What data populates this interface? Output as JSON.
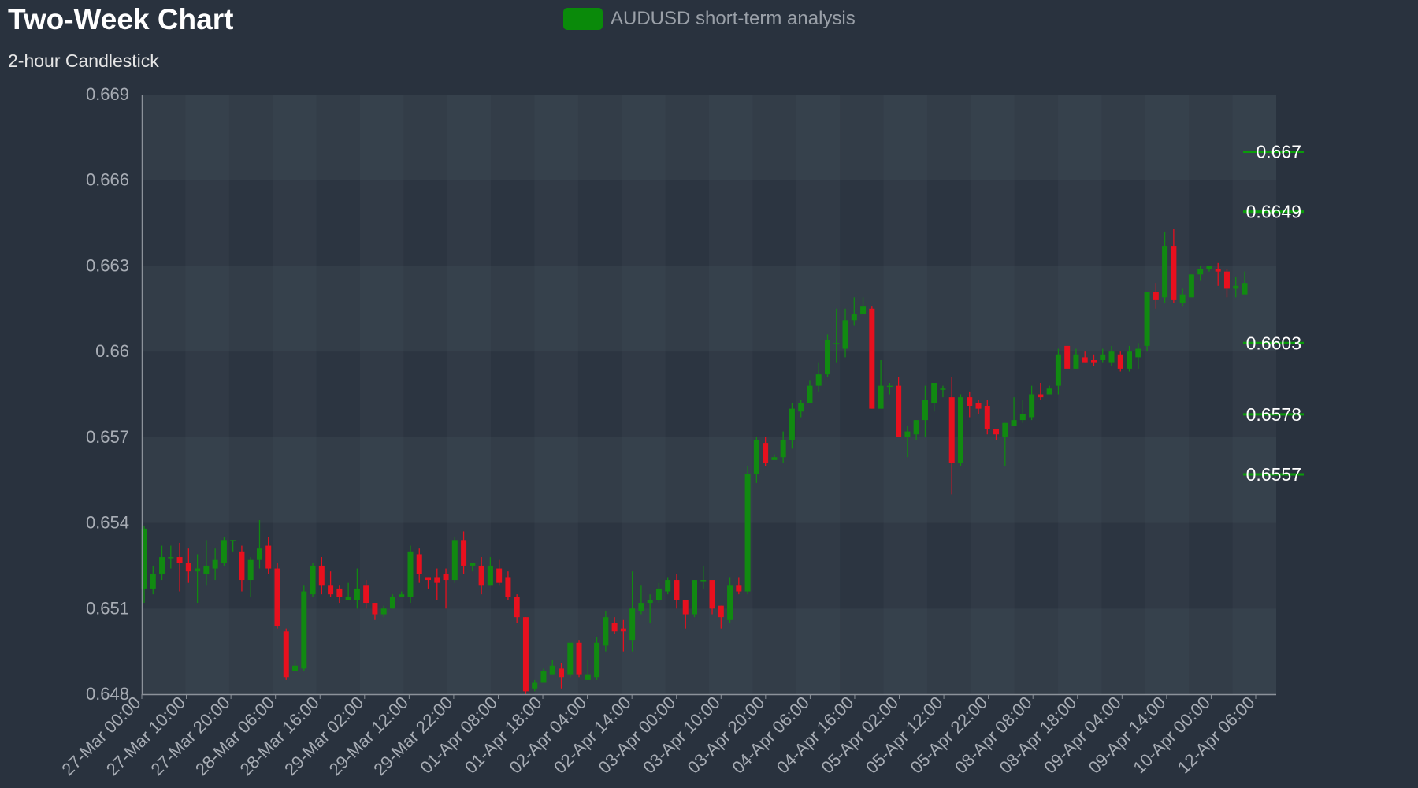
{
  "colors": {
    "background": "#29323e",
    "bull": "#118a11",
    "bear": "#e8101e",
    "legend_swatch": "#0a8a0a",
    "level_line": "#0a9c0a",
    "axis": "#8c929a"
  },
  "chart_data": {
    "type": "candlestick",
    "title": "Two-Week Chart",
    "subtitle": "2-hour Candlestick",
    "legend": "AUDUSD short-term analysis",
    "legend_position": "top-center",
    "ylim": [
      0.648,
      0.669
    ],
    "y_ticks": [
      "0.669",
      "0.666",
      "0.663",
      "0.66",
      "0.657",
      "0.654",
      "0.651",
      "0.648"
    ],
    "y_tick_values": [
      0.669,
      0.666,
      0.663,
      0.66,
      0.657,
      0.654,
      0.651,
      0.648
    ],
    "x_tick_labels": [
      "27-Mar 00:00",
      "27-Mar 10:00",
      "27-Mar 20:00",
      "28-Mar 06:00",
      "28-Mar 16:00",
      "29-Mar 02:00",
      "29-Mar 12:00",
      "29-Mar 22:00",
      "01-Apr 08:00",
      "01-Apr 18:00",
      "02-Apr 04:00",
      "02-Apr 14:00",
      "03-Apr 00:00",
      "03-Apr 10:00",
      "03-Apr 20:00",
      "04-Apr 06:00",
      "04-Apr 16:00",
      "05-Apr 02:00",
      "05-Apr 12:00",
      "05-Apr 22:00",
      "08-Apr 08:00",
      "08-Apr 18:00",
      "09-Apr 04:00",
      "09-Apr 14:00",
      "10-Apr 00:00",
      "12-Apr 06:00"
    ],
    "levels": [
      {
        "label": "0.667",
        "value": 0.667
      },
      {
        "label": "0.6649",
        "value": 0.6649
      },
      {
        "label": "0.6603",
        "value": 0.6603
      },
      {
        "label": "0.6578",
        "value": 0.6578
      },
      {
        "label": "0.6557",
        "value": 0.6557
      }
    ],
    "grid": true,
    "candles": [
      [
        0.6517,
        0.6538,
        0.6512,
        0.6539
      ],
      [
        0.6517,
        0.6522,
        0.6515,
        0.6525
      ],
      [
        0.6522,
        0.6528,
        0.652,
        0.6532
      ],
      [
        0.6528,
        0.6528,
        0.6524,
        0.6532
      ],
      [
        0.6528,
        0.6526,
        0.6516,
        0.6533
      ],
      [
        0.6526,
        0.6523,
        0.6519,
        0.6531
      ],
      [
        0.6523,
        0.6524,
        0.6512,
        0.6529
      ],
      [
        0.6522,
        0.6525,
        0.6518,
        0.6534
      ],
      [
        0.6524,
        0.6527,
        0.652,
        0.6531
      ],
      [
        0.6526,
        0.6534,
        0.6525,
        0.6535
      ],
      [
        0.6534,
        0.6534,
        0.653,
        0.6534
      ],
      [
        0.653,
        0.652,
        0.6516,
        0.6532
      ],
      [
        0.652,
        0.6527,
        0.6514,
        0.6528
      ],
      [
        0.6527,
        0.6531,
        0.6524,
        0.6541
      ],
      [
        0.6532,
        0.6524,
        0.6522,
        0.6535
      ],
      [
        0.6524,
        0.6504,
        0.6503,
        0.6526
      ],
      [
        0.6502,
        0.6486,
        0.6485,
        0.6503
      ],
      [
        0.6488,
        0.649,
        0.6488,
        0.6492
      ],
      [
        0.6489,
        0.6516,
        0.6488,
        0.6518
      ],
      [
        0.6515,
        0.6525,
        0.6514,
        0.6526
      ],
      [
        0.6525,
        0.6518,
        0.6515,
        0.6528
      ],
      [
        0.6518,
        0.6515,
        0.6514,
        0.6523
      ],
      [
        0.6517,
        0.6514,
        0.6512,
        0.6518
      ],
      [
        0.6513,
        0.6514,
        0.6513,
        0.6519
      ],
      [
        0.6513,
        0.6517,
        0.651,
        0.6524
      ],
      [
        0.6518,
        0.6512,
        0.651,
        0.652
      ],
      [
        0.6512,
        0.6508,
        0.6506,
        0.6512
      ],
      [
        0.6508,
        0.651,
        0.6507,
        0.6511
      ],
      [
        0.651,
        0.6514,
        0.651,
        0.6515
      ],
      [
        0.6514,
        0.6515,
        0.6514,
        0.6516
      ],
      [
        0.6514,
        0.653,
        0.6512,
        0.6532
      ],
      [
        0.6529,
        0.6522,
        0.6519,
        0.6531
      ],
      [
        0.6521,
        0.652,
        0.6517,
        0.6521
      ],
      [
        0.6521,
        0.6519,
        0.6513,
        0.6524
      ],
      [
        0.6522,
        0.652,
        0.651,
        0.6524
      ],
      [
        0.652,
        0.6534,
        0.6519,
        0.6535
      ],
      [
        0.6534,
        0.6525,
        0.6522,
        0.6537
      ],
      [
        0.6525,
        0.6526,
        0.6523,
        0.6526
      ],
      [
        0.6525,
        0.6518,
        0.6515,
        0.6528
      ],
      [
        0.6518,
        0.6525,
        0.6518,
        0.6528
      ],
      [
        0.6524,
        0.6519,
        0.6518,
        0.6527
      ],
      [
        0.6521,
        0.6514,
        0.6513,
        0.6523
      ],
      [
        0.6514,
        0.6507,
        0.6505,
        0.6515
      ],
      [
        0.6507,
        0.6481,
        0.648,
        0.6507
      ],
      [
        0.6482,
        0.6484,
        0.6481,
        0.6485
      ],
      [
        0.6484,
        0.6488,
        0.6484,
        0.6489
      ],
      [
        0.6487,
        0.649,
        0.6487,
        0.6492
      ],
      [
        0.6489,
        0.6486,
        0.6482,
        0.6491
      ],
      [
        0.6487,
        0.6498,
        0.6486,
        0.6498
      ],
      [
        0.6498,
        0.6487,
        0.6486,
        0.6499
      ],
      [
        0.6485,
        0.6487,
        0.6485,
        0.6492
      ],
      [
        0.6486,
        0.6498,
        0.6485,
        0.65
      ],
      [
        0.6497,
        0.6507,
        0.6495,
        0.6509
      ],
      [
        0.6505,
        0.6502,
        0.6501,
        0.6507
      ],
      [
        0.6503,
        0.6502,
        0.6495,
        0.6506
      ],
      [
        0.6499,
        0.651,
        0.6495,
        0.6523
      ],
      [
        0.6509,
        0.6512,
        0.6508,
        0.6518
      ],
      [
        0.6512,
        0.6513,
        0.6505,
        0.6515
      ],
      [
        0.6513,
        0.6517,
        0.6512,
        0.6519
      ],
      [
        0.6516,
        0.652,
        0.6515,
        0.6521
      ],
      [
        0.652,
        0.6513,
        0.651,
        0.6522
      ],
      [
        0.6513,
        0.6508,
        0.6503,
        0.6513
      ],
      [
        0.6508,
        0.652,
        0.6507,
        0.652
      ],
      [
        0.652,
        0.652,
        0.6517,
        0.6525
      ],
      [
        0.652,
        0.651,
        0.6508,
        0.652
      ],
      [
        0.6511,
        0.6507,
        0.6503,
        0.6511
      ],
      [
        0.6506,
        0.6518,
        0.6505,
        0.6521
      ],
      [
        0.6518,
        0.6516,
        0.6515,
        0.6521
      ],
      [
        0.6516,
        0.6557,
        0.6515,
        0.656
      ],
      [
        0.6557,
        0.6569,
        0.6554,
        0.657
      ],
      [
        0.6568,
        0.6561,
        0.656,
        0.657
      ],
      [
        0.6562,
        0.6563,
        0.6562,
        0.6564
      ],
      [
        0.6563,
        0.6569,
        0.6561,
        0.6572
      ],
      [
        0.6569,
        0.658,
        0.6566,
        0.6582
      ],
      [
        0.6579,
        0.6582,
        0.6577,
        0.6583
      ],
      [
        0.6582,
        0.6588,
        0.6582,
        0.659
      ],
      [
        0.6588,
        0.6592,
        0.6586,
        0.6596
      ],
      [
        0.6592,
        0.6604,
        0.6591,
        0.6606
      ],
      [
        0.6603,
        0.6603,
        0.6596,
        0.6615
      ],
      [
        0.6601,
        0.6611,
        0.6598,
        0.6615
      ],
      [
        0.6611,
        0.6613,
        0.6609,
        0.6619
      ],
      [
        0.6613,
        0.6616,
        0.6613,
        0.6619
      ],
      [
        0.6615,
        0.658,
        0.658,
        0.6616
      ],
      [
        0.658,
        0.6588,
        0.658,
        0.6597
      ],
      [
        0.6588,
        0.6588,
        0.6585,
        0.6589
      ],
      [
        0.6588,
        0.657,
        0.657,
        0.6591
      ],
      [
        0.657,
        0.6572,
        0.6563,
        0.6574
      ],
      [
        0.6571,
        0.6576,
        0.6569,
        0.6576
      ],
      [
        0.6576,
        0.6583,
        0.657,
        0.6588
      ],
      [
        0.6582,
        0.6589,
        0.6579,
        0.6589
      ],
      [
        0.6587,
        0.6587,
        0.6584,
        0.6588
      ],
      [
        0.6584,
        0.6561,
        0.655,
        0.6591
      ],
      [
        0.6561,
        0.6584,
        0.656,
        0.6585
      ],
      [
        0.6584,
        0.6581,
        0.6577,
        0.6586
      ],
      [
        0.6582,
        0.658,
        0.6578,
        0.6583
      ],
      [
        0.6581,
        0.6573,
        0.6571,
        0.6583
      ],
      [
        0.6573,
        0.6571,
        0.6569,
        0.6573
      ],
      [
        0.657,
        0.6575,
        0.656,
        0.6575
      ],
      [
        0.6574,
        0.6576,
        0.6574,
        0.6584
      ],
      [
        0.6576,
        0.6578,
        0.6575,
        0.6583
      ],
      [
        0.6577,
        0.6585,
        0.6576,
        0.6588
      ],
      [
        0.6585,
        0.6584,
        0.6583,
        0.6589
      ],
      [
        0.6585,
        0.6587,
        0.6585,
        0.6588
      ],
      [
        0.6588,
        0.6599,
        0.6585,
        0.6601
      ],
      [
        0.6602,
        0.6594,
        0.6594,
        0.6602
      ],
      [
        0.6594,
        0.6599,
        0.6594,
        0.6601
      ],
      [
        0.6598,
        0.6596,
        0.6596,
        0.66
      ],
      [
        0.6597,
        0.6596,
        0.6595,
        0.6599
      ],
      [
        0.6597,
        0.6599,
        0.6596,
        0.6601
      ],
      [
        0.6596,
        0.66,
        0.6595,
        0.6602
      ],
      [
        0.6599,
        0.6594,
        0.6593,
        0.66
      ],
      [
        0.6594,
        0.66,
        0.6593,
        0.6602
      ],
      [
        0.6598,
        0.6601,
        0.6594,
        0.6603
      ],
      [
        0.6602,
        0.6621,
        0.66,
        0.6621
      ],
      [
        0.6621,
        0.6618,
        0.6615,
        0.6624
      ],
      [
        0.6619,
        0.6637,
        0.6617,
        0.6642
      ],
      [
        0.6637,
        0.6618,
        0.6617,
        0.6643
      ],
      [
        0.6617,
        0.662,
        0.6616,
        0.6622
      ],
      [
        0.6619,
        0.6627,
        0.6619,
        0.6627
      ],
      [
        0.6627,
        0.6629,
        0.6625,
        0.663
      ],
      [
        0.6629,
        0.663,
        0.6628,
        0.663
      ],
      [
        0.6629,
        0.6628,
        0.6623,
        0.6631
      ],
      [
        0.6628,
        0.6622,
        0.6619,
        0.6629
      ],
      [
        0.6622,
        0.6623,
        0.6619,
        0.6626
      ],
      [
        0.662,
        0.6624,
        0.662,
        0.6628
      ]
    ]
  }
}
